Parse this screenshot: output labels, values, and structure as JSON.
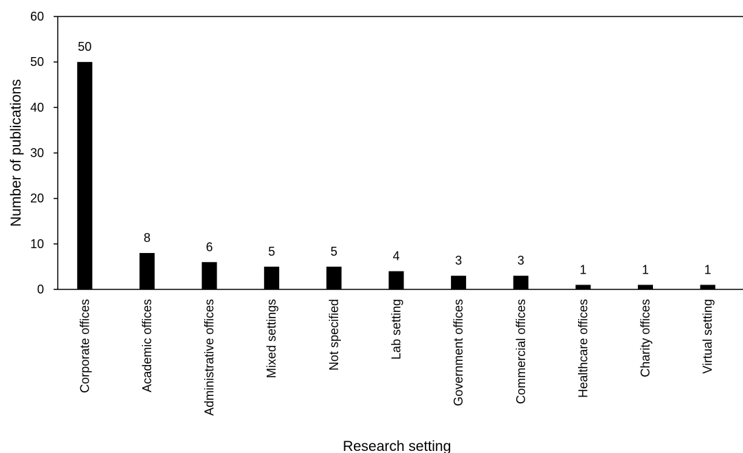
{
  "chart_data": {
    "type": "bar",
    "title": "",
    "xlabel": "Research setting",
    "ylabel": "Number of publications",
    "categories": [
      "Corporate offices",
      "Academic offices",
      "Administrative offices",
      "Mixed settings",
      "Not specified",
      "Lab setting",
      "Government offices",
      "Commercial offices",
      "Healthcare offices",
      "Charity offices",
      "Virtual setting"
    ],
    "values": [
      50,
      8,
      6,
      5,
      5,
      4,
      3,
      3,
      1,
      1,
      1
    ],
    "data_labels": [
      "50",
      "8",
      "6",
      "5",
      "5",
      "4",
      "3",
      "3",
      "1",
      "1",
      "1"
    ],
    "ylim": [
      0,
      60
    ],
    "yticks": [
      "0",
      "10",
      "20",
      "30",
      "40",
      "50",
      "60"
    ],
    "grid": false,
    "legend": "none",
    "bar_color": "#000000",
    "axis_color": "#000000"
  }
}
